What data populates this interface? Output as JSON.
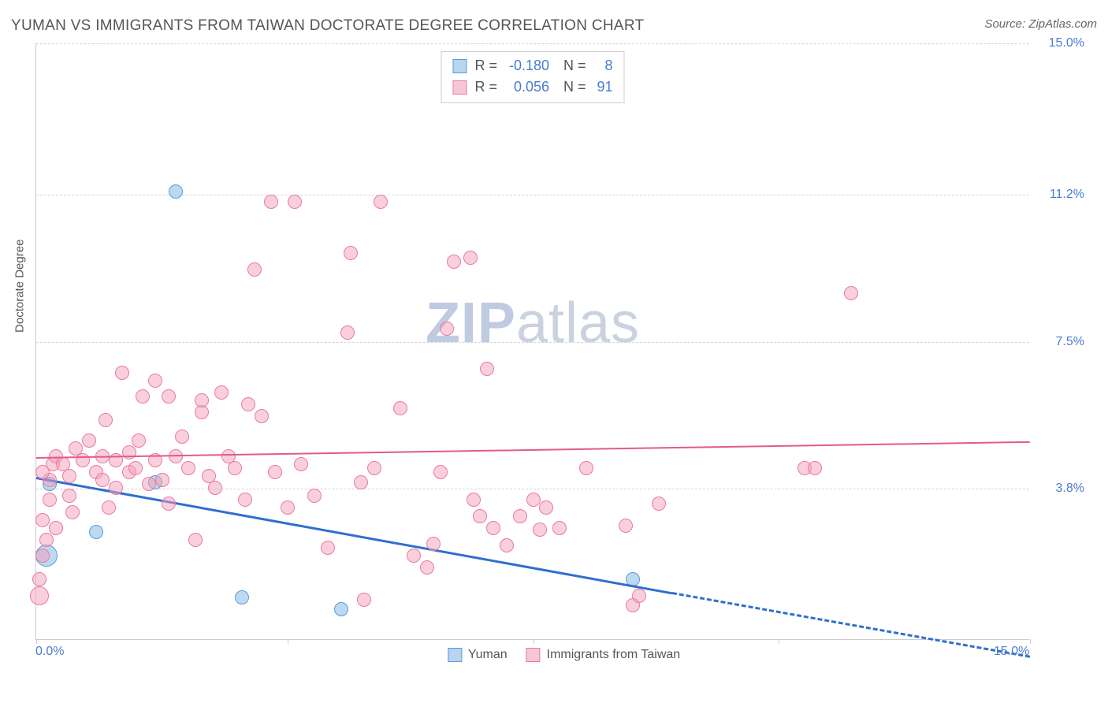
{
  "header": {
    "title": "YUMAN VS IMMIGRANTS FROM TAIWAN DOCTORATE DEGREE CORRELATION CHART",
    "source": "Source: ZipAtlas.com"
  },
  "chart": {
    "type": "scatter",
    "ylabel": "Doctorate Degree",
    "watermark_zip": "ZIP",
    "watermark_atlas": "atlas",
    "xlim": [
      0,
      15
    ],
    "ylim": [
      0,
      15
    ],
    "x_ticks": [
      0,
      3.8,
      7.5,
      11.2,
      15
    ],
    "x_tick_labels": [
      "0.0%",
      "",
      "",
      "",
      "15.0%"
    ],
    "y_ticks": [
      3.8,
      7.5,
      11.2,
      15
    ],
    "y_tick_labels": [
      "3.8%",
      "7.5%",
      "11.2%",
      "15.0%"
    ],
    "grid_color": "#d5d5d5",
    "axis_color": "#cccccc",
    "tick_label_color": "#4a7bd0",
    "background_color": "#ffffff",
    "series": [
      {
        "name": "Yuman",
        "legend_label": "Yuman",
        "marker_fill": "rgba(135, 185, 230, 0.55)",
        "marker_stroke": "#5a9bd5",
        "swatch_fill": "#b8d4ee",
        "swatch_border": "#5a9bd5",
        "marker_radius": 9,
        "stats": {
          "R": "-0.180",
          "N": "8"
        },
        "trend": {
          "x1": 0,
          "y1": 4.1,
          "x2": 9.6,
          "y2": 1.2,
          "extrap_x2": 15,
          "extrap_y2": -0.4,
          "color": "#2e6fd0",
          "width": 3
        },
        "points": [
          [
            0.15,
            2.1,
            14
          ],
          [
            0.2,
            3.9,
            9
          ],
          [
            0.9,
            2.7,
            9
          ],
          [
            1.8,
            3.95,
            9
          ],
          [
            2.1,
            11.25,
            9
          ],
          [
            3.1,
            1.05,
            9
          ],
          [
            4.6,
            0.75,
            9
          ],
          [
            9.0,
            1.5,
            9
          ]
        ]
      },
      {
        "name": "Immigrants from Taiwan",
        "legend_label": "Immigrants from Taiwan",
        "marker_fill": "rgba(244, 160, 185, 0.5)",
        "marker_stroke": "#ea7aa0",
        "swatch_fill": "#f7c6d5",
        "swatch_border": "#ea7aa0",
        "marker_radius": 9,
        "stats": {
          "R": "0.056",
          "N": "91"
        },
        "trend": {
          "x1": 0,
          "y1": 4.6,
          "x2": 15,
          "y2": 5.0,
          "color": "#e35a8a",
          "width": 2
        },
        "points": [
          [
            0.05,
            1.1,
            12
          ],
          [
            0.1,
            2.1,
            9
          ],
          [
            0.15,
            2.5,
            9
          ],
          [
            0.1,
            3.0,
            9
          ],
          [
            0.2,
            3.5,
            9
          ],
          [
            0.2,
            4.0,
            9
          ],
          [
            0.25,
            4.4,
            9
          ],
          [
            0.3,
            4.6,
            9
          ],
          [
            0.1,
            4.2,
            9
          ],
          [
            0.4,
            4.4,
            9
          ],
          [
            0.5,
            4.1,
            9
          ],
          [
            0.5,
            3.6,
            9
          ],
          [
            0.6,
            4.8,
            9
          ],
          [
            0.7,
            4.5,
            9
          ],
          [
            0.8,
            5.0,
            9
          ],
          [
            0.9,
            4.2,
            9
          ],
          [
            1.0,
            4.0,
            9
          ],
          [
            1.0,
            4.6,
            9
          ],
          [
            1.1,
            3.3,
            9
          ],
          [
            1.2,
            3.8,
            9
          ],
          [
            1.2,
            4.5,
            9
          ],
          [
            1.3,
            6.7,
            9
          ],
          [
            1.4,
            4.2,
            9
          ],
          [
            1.4,
            4.7,
            9
          ],
          [
            1.5,
            4.3,
            9
          ],
          [
            1.55,
            5.0,
            9
          ],
          [
            1.6,
            6.1,
            9
          ],
          [
            1.7,
            3.9,
            9
          ],
          [
            1.8,
            4.5,
            9
          ],
          [
            1.8,
            6.5,
            9
          ],
          [
            1.9,
            4.0,
            9
          ],
          [
            2.0,
            3.4,
            9
          ],
          [
            2.0,
            6.1,
            9
          ],
          [
            2.1,
            4.6,
            9
          ],
          [
            2.2,
            5.1,
            9
          ],
          [
            2.3,
            4.3,
            9
          ],
          [
            2.4,
            2.5,
            9
          ],
          [
            2.5,
            5.7,
            9
          ],
          [
            2.5,
            6.0,
            9
          ],
          [
            2.6,
            4.1,
            9
          ],
          [
            2.7,
            3.8,
            9
          ],
          [
            2.8,
            6.2,
            9
          ],
          [
            2.9,
            4.6,
            9
          ],
          [
            3.0,
            4.3,
            9
          ],
          [
            3.15,
            3.5,
            9
          ],
          [
            3.2,
            5.9,
            9
          ],
          [
            3.3,
            9.3,
            9
          ],
          [
            3.4,
            5.6,
            9
          ],
          [
            3.55,
            11.0,
            9
          ],
          [
            3.6,
            4.2,
            9
          ],
          [
            3.8,
            3.3,
            9
          ],
          [
            3.9,
            11.0,
            9
          ],
          [
            4.0,
            4.4,
            9
          ],
          [
            4.2,
            3.6,
            9
          ],
          [
            4.4,
            2.3,
            9
          ],
          [
            4.7,
            7.7,
            9
          ],
          [
            4.75,
            9.7,
            9
          ],
          [
            4.9,
            3.95,
            9
          ],
          [
            4.95,
            1.0,
            9
          ],
          [
            5.1,
            4.3,
            9
          ],
          [
            5.2,
            11.0,
            9
          ],
          [
            5.5,
            5.8,
            9
          ],
          [
            5.7,
            2.1,
            9
          ],
          [
            5.9,
            1.8,
            9
          ],
          [
            6.0,
            2.4,
            9
          ],
          [
            6.1,
            4.2,
            9
          ],
          [
            6.2,
            7.8,
            9
          ],
          [
            6.3,
            9.5,
            9
          ],
          [
            6.55,
            9.6,
            9
          ],
          [
            6.6,
            3.5,
            9
          ],
          [
            6.7,
            3.1,
            9
          ],
          [
            6.8,
            6.8,
            9
          ],
          [
            6.9,
            2.8,
            9
          ],
          [
            7.1,
            2.35,
            9
          ],
          [
            7.3,
            3.1,
            9
          ],
          [
            7.5,
            3.5,
            9
          ],
          [
            7.6,
            2.75,
            9
          ],
          [
            7.7,
            3.3,
            9
          ],
          [
            7.9,
            2.8,
            9
          ],
          [
            8.3,
            4.3,
            9
          ],
          [
            8.9,
            2.85,
            9
          ],
          [
            9.0,
            0.85,
            9
          ],
          [
            9.1,
            1.1,
            9
          ],
          [
            9.4,
            3.4,
            9
          ],
          [
            11.6,
            4.3,
            9
          ],
          [
            11.75,
            4.3,
            9
          ],
          [
            12.3,
            8.7,
            9
          ],
          [
            0.05,
            1.5,
            9
          ],
          [
            0.3,
            2.8,
            9
          ],
          [
            0.55,
            3.2,
            9
          ],
          [
            1.05,
            5.5,
            9
          ]
        ]
      }
    ]
  },
  "stats_box": {
    "rows": [
      {
        "swatch_fill": "#b8d4ee",
        "swatch_border": "#5a9bd5",
        "r_label": "R =",
        "r_val": "-0.180",
        "n_label": "N =",
        "n_val": "8"
      },
      {
        "swatch_fill": "#f7c6d5",
        "swatch_border": "#ea7aa0",
        "r_label": "R =",
        "r_val": "0.056",
        "n_label": "N =",
        "n_val": "91"
      }
    ]
  }
}
